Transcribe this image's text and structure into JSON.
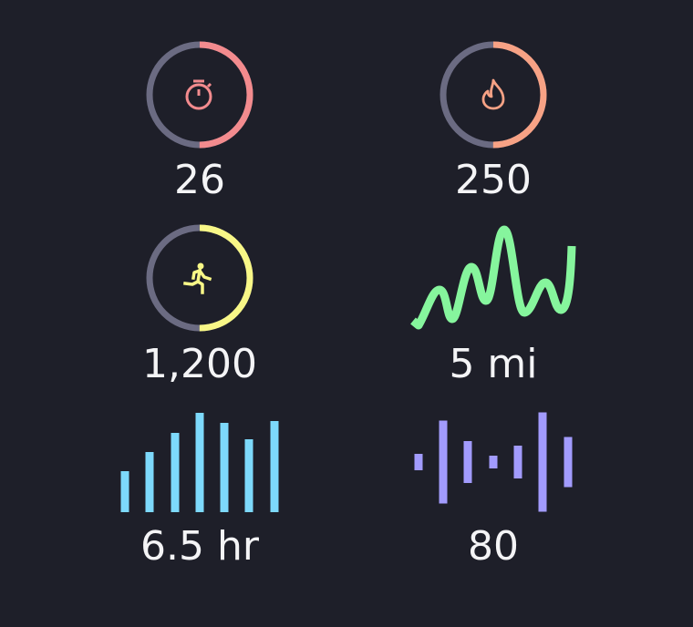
{
  "colors": {
    "background": "#1e1f29",
    "track": "#6b6b82",
    "red": "#f38b8e",
    "orange": "#f7a285",
    "yellow": "#f8f787",
    "green": "#86f59d",
    "blue": "#7dd9fb",
    "purple": "#a29bfd",
    "text": "#f4f4f6"
  },
  "tiles": [
    {
      "icon": "stopwatch-icon",
      "value": "26",
      "progress": 0.5
    },
    {
      "icon": "flame-icon",
      "value": "250",
      "progress": 0.5
    },
    {
      "icon": "running-icon",
      "value": "1,200",
      "progress": 0.5
    },
    {
      "icon": "line-wave",
      "value": "5 mi"
    },
    {
      "icon": "bar-chart",
      "value": "6.5 hr",
      "bars": [
        45,
        66,
        87,
        109,
        98,
        80,
        100
      ]
    },
    {
      "icon": "audio-wave",
      "value": "80",
      "bars": [
        18,
        91,
        46,
        14,
        36,
        109,
        55
      ]
    }
  ]
}
